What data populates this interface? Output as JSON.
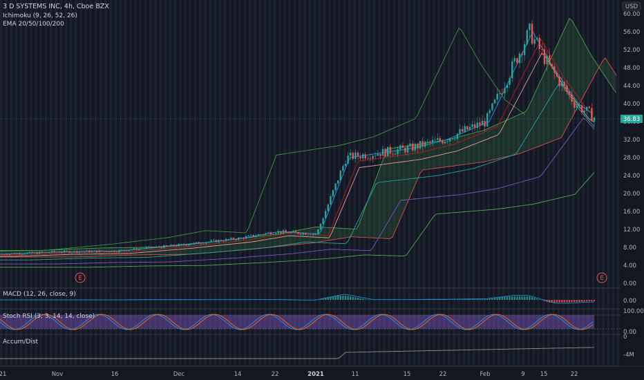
{
  "header": {
    "title": "3 D SYSTEMS INC, 4h, Cboe BZX",
    "indicator1": "Ichimoku (9, 26, 52, 26)",
    "indicator2": "EMA 20/50/100/200",
    "currency": "USD"
  },
  "price_axis": {
    "ticks": [
      "60.00",
      "56.00",
      "52.00",
      "48.00",
      "44.00",
      "40.00",
      "36.00",
      "32.00",
      "28.00",
      "24.00",
      "20.00",
      "16.00",
      "12.00",
      "8.00",
      "4.00",
      "0.00"
    ],
    "current_price": "36.83"
  },
  "x_axis": {
    "labels": [
      "21",
      "Nov",
      "16",
      "Dec",
      "14",
      "22",
      "2021",
      "11",
      "15",
      "22",
      "Feb",
      "9",
      "15",
      "22"
    ]
  },
  "earnings_marker": "E",
  "panes": {
    "macd": {
      "label": "MACD (12, 26, close, 9)",
      "ticks": [
        "0.00"
      ]
    },
    "stoch": {
      "label": "Stoch RSI (3, 3, 14, 14, close)",
      "ticks": [
        "100.00",
        "0.00"
      ]
    },
    "accum": {
      "label": "Accum/Dist",
      "ticks": [
        "0",
        "-4M"
      ]
    }
  },
  "colors": {
    "background": "#131722",
    "up": "#26a69a",
    "down": "#ef5350",
    "cloud_up": "#2e5e38",
    "tenkan": "#2196f3",
    "kijun": "#b71c1c",
    "ema": "#4caf50",
    "stoch_fill": "#7e57c2"
  },
  "chart_data": {
    "type": "candlestick",
    "ylim": [
      0,
      60
    ],
    "close_series": {
      "name": "",
      "x": [
        "Oct 21",
        "Nov 1",
        "Nov 16",
        "Dec 1",
        "Dec 14",
        "Dec 22",
        "Jan 4",
        "Jan 11",
        "Jan 15",
        "Jan 22",
        "Feb 1",
        "Feb 9",
        "Feb 15",
        "Feb 22",
        "Feb 24"
      ],
      "values": [
        6.5,
        7.0,
        7.2,
        8.5,
        10.0,
        11.5,
        11.0,
        28.0,
        30.0,
        32.0,
        36.0,
        56.0,
        48.0,
        40.0,
        36.83
      ]
    }
  }
}
